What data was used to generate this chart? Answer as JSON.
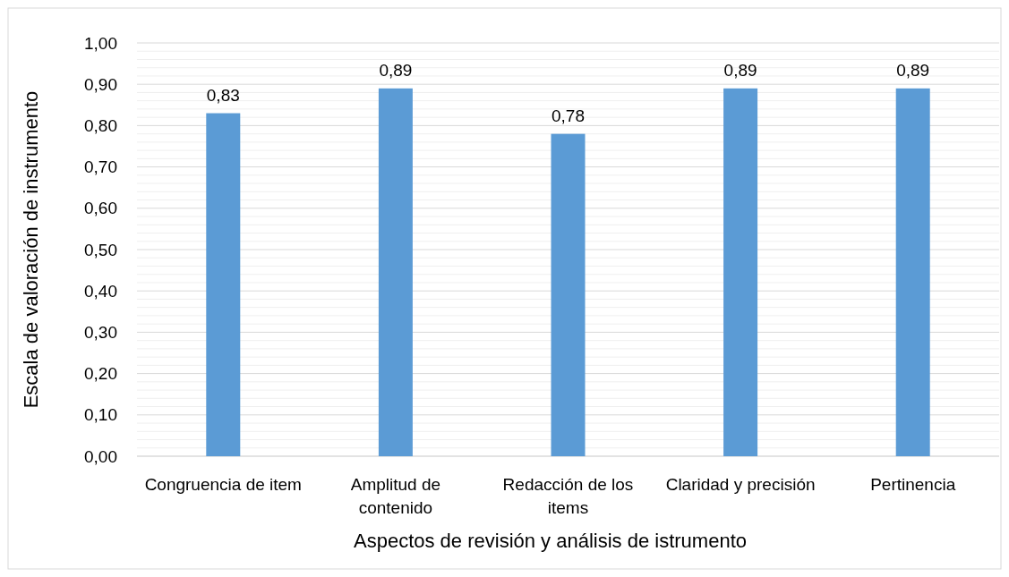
{
  "chart_data": {
    "type": "bar",
    "xlabel": "Aspectos de revisión y análisis de istrumento",
    "ylabel": "Escala de valoración de instrumento",
    "categories": [
      "Congruencia de item",
      "Amplitud de contenido",
      "Redacción de los items",
      "Claridad y precisión",
      "Pertinencia"
    ],
    "values": [
      0.83,
      0.89,
      0.78,
      0.89,
      0.89
    ],
    "value_labels": [
      "0,83",
      "0,89",
      "0,78",
      "0,89",
      "0,89"
    ],
    "color": "#5b9bd5",
    "ylim": [
      0,
      1
    ],
    "yticks": [
      {
        "value": 0,
        "label": "0,00"
      },
      {
        "value": 0.02,
        "label": null
      },
      {
        "value": 0.04,
        "label": null
      },
      {
        "value": 0.06,
        "label": null
      },
      {
        "value": 0.08,
        "label": null
      },
      {
        "value": 0.1,
        "label": "0,10"
      },
      {
        "value": 0.12,
        "label": null
      },
      {
        "value": 0.14,
        "label": null
      },
      {
        "value": 0.16,
        "label": null
      },
      {
        "value": 0.18,
        "label": null
      },
      {
        "value": 0.2,
        "label": "0,20"
      },
      {
        "value": 0.22,
        "label": null
      },
      {
        "value": 0.24,
        "label": null
      },
      {
        "value": 0.26,
        "label": null
      },
      {
        "value": 0.28,
        "label": null
      },
      {
        "value": 0.3,
        "label": "0,30"
      },
      {
        "value": 0.32,
        "label": null
      },
      {
        "value": 0.34,
        "label": null
      },
      {
        "value": 0.36,
        "label": null
      },
      {
        "value": 0.38,
        "label": null
      },
      {
        "value": 0.4,
        "label": "0,40"
      },
      {
        "value": 0.42,
        "label": null
      },
      {
        "value": 0.44,
        "label": null
      },
      {
        "value": 0.46,
        "label": null
      },
      {
        "value": 0.48,
        "label": null
      },
      {
        "value": 0.5,
        "label": "0,50"
      },
      {
        "value": 0.52,
        "label": null
      },
      {
        "value": 0.54,
        "label": null
      },
      {
        "value": 0.56,
        "label": null
      },
      {
        "value": 0.58,
        "label": null
      },
      {
        "value": 0.6,
        "label": "0,60"
      },
      {
        "value": 0.62,
        "label": null
      },
      {
        "value": 0.64,
        "label": null
      },
      {
        "value": 0.66,
        "label": null
      },
      {
        "value": 0.68,
        "label": null
      },
      {
        "value": 0.7,
        "label": "0,70"
      },
      {
        "value": 0.72,
        "label": null
      },
      {
        "value": 0.74,
        "label": null
      },
      {
        "value": 0.76,
        "label": null
      },
      {
        "value": 0.78,
        "label": null
      },
      {
        "value": 0.8,
        "label": "0,80"
      },
      {
        "value": 0.82,
        "label": null
      },
      {
        "value": 0.84,
        "label": null
      },
      {
        "value": 0.86,
        "label": null
      },
      {
        "value": 0.88,
        "label": null
      },
      {
        "value": 0.9,
        "label": "0,90"
      },
      {
        "value": 0.92,
        "label": null
      },
      {
        "value": 0.94,
        "label": null
      },
      {
        "value": 0.96,
        "label": null
      },
      {
        "value": 0.98,
        "label": null
      },
      {
        "value": 1,
        "label": "1,00"
      }
    ],
    "grid": "y"
  }
}
